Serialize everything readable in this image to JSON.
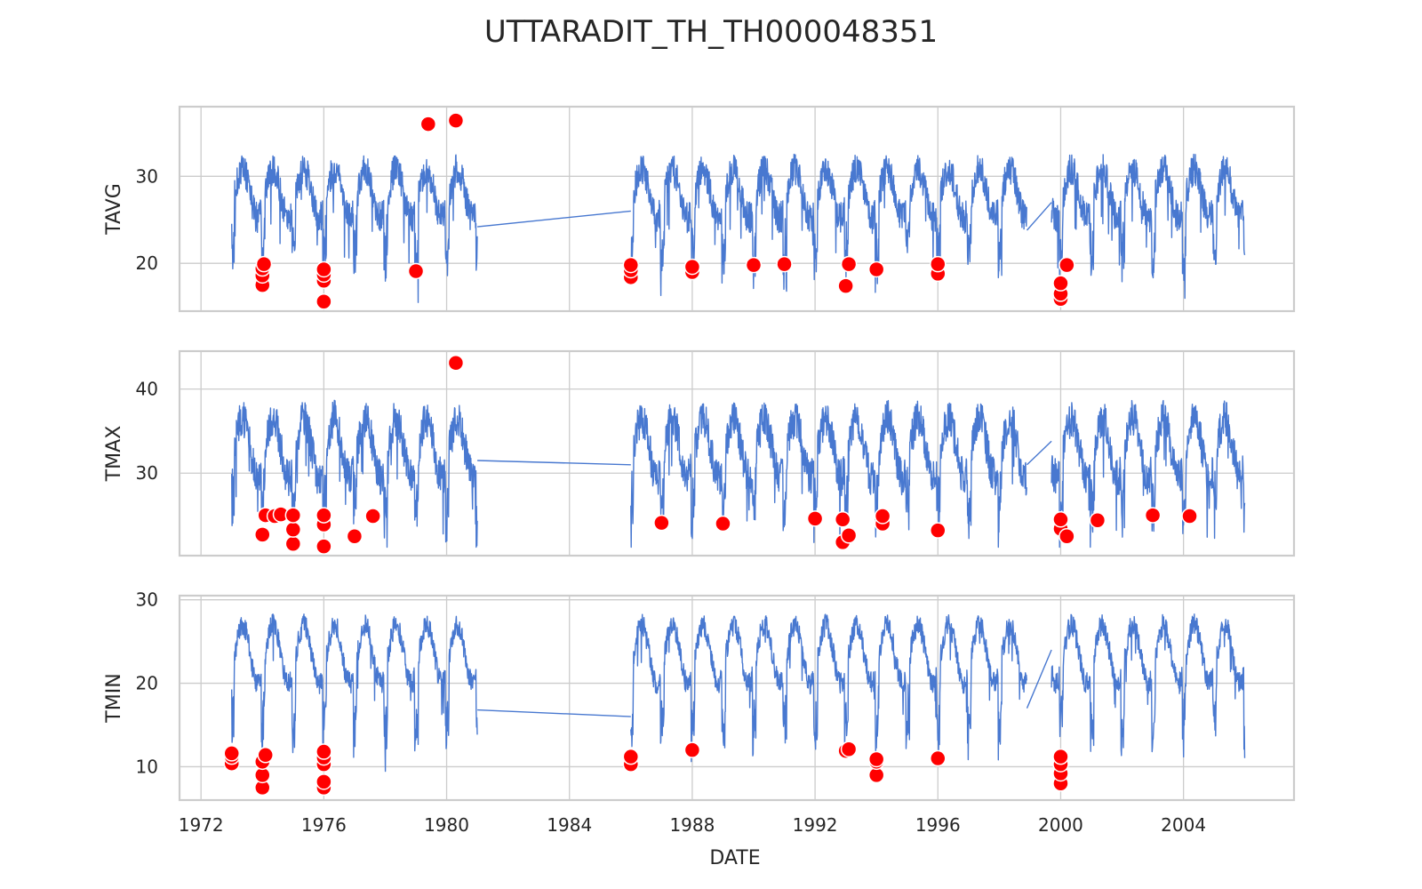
{
  "chart_data": {
    "type": "line",
    "title": "UTTARADIT_TH_TH000048351",
    "xlabel": "DATE",
    "x_ticks": [
      "1972",
      "1976",
      "1980",
      "1984",
      "1988",
      "1992",
      "1996",
      "2000",
      "2004"
    ],
    "xlim": [
      1971.3,
      2007.6
    ],
    "grid": true,
    "colors": {
      "line": "#4878d0",
      "outlier": "#ff0000",
      "outlier_edge": "#ffffff",
      "grid": "#cccccc",
      "spine": "#cccccc"
    },
    "segments": [
      [
        1973.0,
        1981.0
      ],
      [
        1986.0,
        1998.9
      ],
      [
        1999.7,
        2006.0
      ]
    ],
    "panels": [
      {
        "ylabel": "TAVG",
        "ylim": [
          14.5,
          38.0
        ],
        "yticks": [
          "20",
          "30"
        ],
        "baseline": 28.0,
        "seasonal_amp": 2.8,
        "noise": 1.8,
        "dip_depth": 5.5,
        "bridges": [
          [
            1981.0,
            24.2,
            1986.0,
            26.0
          ],
          [
            1998.9,
            23.8,
            1999.7,
            27.0
          ]
        ],
        "outliers": [
          [
            1974.0,
            17.5
          ],
          [
            1974.0,
            18.6
          ],
          [
            1974.0,
            19.4
          ],
          [
            1974.05,
            19.9
          ],
          [
            1976.0,
            15.6
          ],
          [
            1976.0,
            18.0
          ],
          [
            1976.0,
            18.7
          ],
          [
            1976.0,
            19.3
          ],
          [
            1979.0,
            19.1
          ],
          [
            1979.4,
            36.0
          ],
          [
            1980.3,
            36.4
          ],
          [
            1986.0,
            18.4
          ],
          [
            1986.0,
            19.2
          ],
          [
            1986.0,
            19.8
          ],
          [
            1988.0,
            19.0
          ],
          [
            1988.0,
            19.6
          ],
          [
            1990.0,
            19.8
          ],
          [
            1991.0,
            19.9
          ],
          [
            1993.0,
            17.4
          ],
          [
            1993.1,
            19.9
          ],
          [
            1994.0,
            19.3
          ],
          [
            1996.0,
            18.8
          ],
          [
            1996.0,
            19.9
          ],
          [
            2000.0,
            15.9
          ],
          [
            2000.0,
            16.5
          ],
          [
            2000.0,
            17.7
          ],
          [
            2000.2,
            19.8
          ]
        ]
      },
      {
        "ylabel": "TMAX",
        "ylim": [
          20.2,
          44.5
        ],
        "yticks": [
          "30",
          "40"
        ],
        "baseline": 33.0,
        "seasonal_amp": 3.5,
        "noise": 2.2,
        "dip_depth": 5.0,
        "bridges": [
          [
            1981.0,
            31.5,
            1986.0,
            31.0
          ],
          [
            1998.9,
            31.0,
            1999.7,
            33.8
          ]
        ],
        "outliers": [
          [
            1974.0,
            22.7
          ],
          [
            1974.1,
            25.0
          ],
          [
            1974.4,
            24.9
          ],
          [
            1974.6,
            25.1
          ],
          [
            1975.0,
            21.6
          ],
          [
            1975.0,
            23.3
          ],
          [
            1975.0,
            25.0
          ],
          [
            1976.0,
            21.3
          ],
          [
            1976.0,
            23.9
          ],
          [
            1976.0,
            25.0
          ],
          [
            1977.0,
            22.5
          ],
          [
            1977.6,
            24.9
          ],
          [
            1980.3,
            43.1
          ],
          [
            1987.0,
            24.1
          ],
          [
            1989.0,
            24.0
          ],
          [
            1992.0,
            24.6
          ],
          [
            1992.9,
            21.8
          ],
          [
            1992.9,
            24.5
          ],
          [
            1993.1,
            22.6
          ],
          [
            1994.2,
            24.0
          ],
          [
            1994.2,
            24.9
          ],
          [
            1996.0,
            23.2
          ],
          [
            2000.0,
            23.4
          ],
          [
            2000.0,
            24.5
          ],
          [
            2000.2,
            22.5
          ],
          [
            2001.2,
            24.4
          ],
          [
            2003.0,
            25.0
          ],
          [
            2004.2,
            24.9
          ]
        ]
      },
      {
        "ylabel": "TMIN",
        "ylim": [
          6.0,
          30.5
        ],
        "yticks": [
          "10",
          "20",
          "30"
        ],
        "baseline": 23.5,
        "seasonal_amp": 3.5,
        "noise": 1.3,
        "dip_depth": 6.5,
        "bridges": [
          [
            1981.0,
            16.8,
            1986.0,
            16.0
          ],
          [
            1998.9,
            17.0,
            1999.7,
            24.0
          ]
        ],
        "outliers": [
          [
            1973.0,
            10.4
          ],
          [
            1973.0,
            11.2
          ],
          [
            1973.0,
            11.6
          ],
          [
            1974.0,
            7.5
          ],
          [
            1974.0,
            9.0
          ],
          [
            1974.0,
            10.6
          ],
          [
            1974.1,
            11.4
          ],
          [
            1976.0,
            7.5
          ],
          [
            1976.0,
            8.2
          ],
          [
            1976.0,
            10.3
          ],
          [
            1976.0,
            11.1
          ],
          [
            1976.0,
            11.8
          ],
          [
            1986.0,
            10.3
          ],
          [
            1986.0,
            11.2
          ],
          [
            1988.0,
            12.0
          ],
          [
            1993.0,
            11.9
          ],
          [
            1993.1,
            12.1
          ],
          [
            1994.0,
            9.0
          ],
          [
            1994.0,
            10.6
          ],
          [
            1994.0,
            10.9
          ],
          [
            1996.0,
            11.0
          ],
          [
            2000.0,
            8.0
          ],
          [
            2000.0,
            9.2
          ],
          [
            2000.0,
            10.3
          ],
          [
            2000.0,
            11.2
          ]
        ]
      }
    ]
  }
}
